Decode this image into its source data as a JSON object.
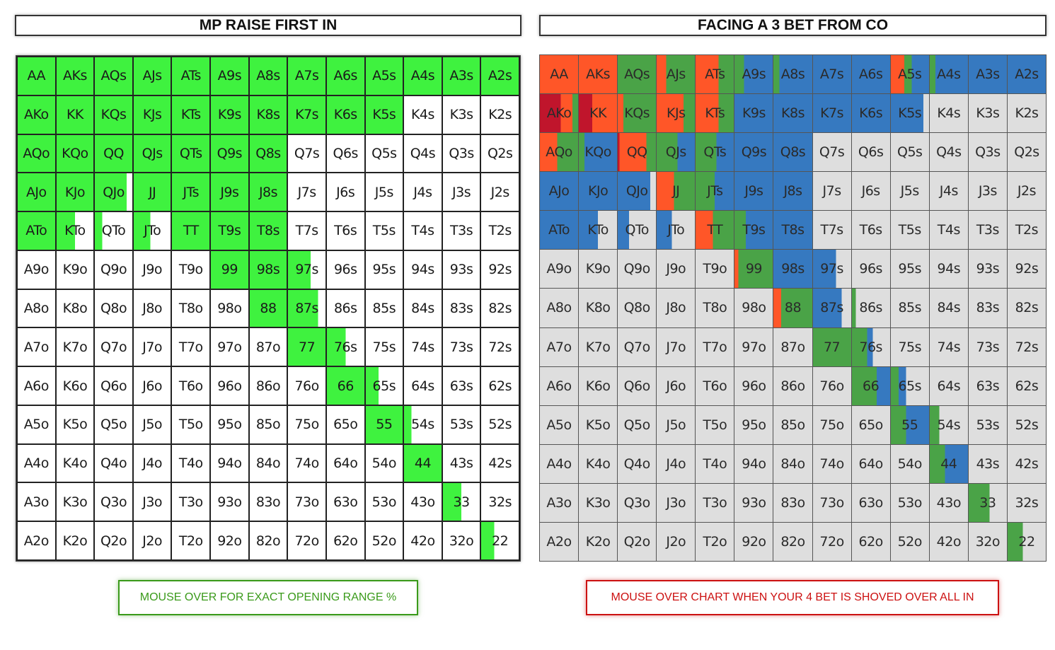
{
  "left_panel": {
    "title": "MP RAISE FIRST IN",
    "note": "MOUSE OVER FOR EXACT OPENING RANGE %"
  },
  "right_panel": {
    "title": "FACING A 3 BET FROM CO",
    "note": "MOUSE OVER CHART WHEN YOUR 4 BET IS SHOVED OVER ALL IN"
  },
  "colors": {
    "raise": "#3ff23f",
    "fold_left": "#ffffff",
    "four_bet_allin": "#c0152c",
    "four_bet_fold": "#ff5628",
    "call": "#4aa347",
    "fold_right": "#dedede",
    "blue": "#3679c0"
  },
  "hands": [
    [
      "AA",
      "AKs",
      "AQs",
      "AJs",
      "ATs",
      "A9s",
      "A8s",
      "A7s",
      "A6s",
      "A5s",
      "A4s",
      "A3s",
      "A2s"
    ],
    [
      "AKo",
      "KK",
      "KQs",
      "KJs",
      "KTs",
      "K9s",
      "K8s",
      "K7s",
      "K6s",
      "K5s",
      "K4s",
      "K3s",
      "K2s"
    ],
    [
      "AQo",
      "KQo",
      "QQ",
      "QJs",
      "QTs",
      "Q9s",
      "Q8s",
      "Q7s",
      "Q6s",
      "Q5s",
      "Q4s",
      "Q3s",
      "Q2s"
    ],
    [
      "AJo",
      "KJo",
      "QJo",
      "JJ",
      "JTs",
      "J9s",
      "J8s",
      "J7s",
      "J6s",
      "J5s",
      "J4s",
      "J3s",
      "J2s"
    ],
    [
      "ATo",
      "KTo",
      "QTo",
      "JTo",
      "TT",
      "T9s",
      "T8s",
      "T7s",
      "T6s",
      "T5s",
      "T4s",
      "T3s",
      "T2s"
    ],
    [
      "A9o",
      "K9o",
      "Q9o",
      "J9o",
      "T9o",
      "99",
      "98s",
      "97s",
      "96s",
      "95s",
      "94s",
      "93s",
      "92s"
    ],
    [
      "A8o",
      "K8o",
      "Q8o",
      "J8o",
      "T8o",
      "98o",
      "88",
      "87s",
      "86s",
      "85s",
      "84s",
      "83s",
      "82s"
    ],
    [
      "A7o",
      "K7o",
      "Q7o",
      "J7o",
      "T7o",
      "97o",
      "87o",
      "77",
      "76s",
      "75s",
      "74s",
      "73s",
      "72s"
    ],
    [
      "A6o",
      "K6o",
      "Q6o",
      "J6o",
      "T6o",
      "96o",
      "86o",
      "76o",
      "66",
      "65s",
      "64s",
      "63s",
      "62s"
    ],
    [
      "A5o",
      "K5o",
      "Q5o",
      "J5o",
      "T5o",
      "95o",
      "85o",
      "75o",
      "65o",
      "55",
      "54s",
      "53s",
      "52s"
    ],
    [
      "A4o",
      "K4o",
      "Q4o",
      "J4o",
      "T4o",
      "94o",
      "84o",
      "74o",
      "64o",
      "54o",
      "44",
      "43s",
      "42s"
    ],
    [
      "A3o",
      "K3o",
      "Q3o",
      "J3o",
      "T3o",
      "93o",
      "83o",
      "73o",
      "63o",
      "53o",
      "43o",
      "33",
      "32s"
    ],
    [
      "A2o",
      "K2o",
      "Q2o",
      "J2o",
      "T2o",
      "92o",
      "82o",
      "72o",
      "62o",
      "52o",
      "42o",
      "32o",
      "22"
    ]
  ],
  "open_range_pct": [
    [
      100,
      100,
      100,
      100,
      100,
      100,
      100,
      100,
      100,
      100,
      100,
      100,
      100
    ],
    [
      100,
      100,
      100,
      100,
      100,
      100,
      100,
      100,
      100,
      100,
      0,
      0,
      0
    ],
    [
      100,
      100,
      100,
      100,
      100,
      100,
      100,
      0,
      0,
      0,
      0,
      0,
      0
    ],
    [
      100,
      100,
      85,
      100,
      100,
      100,
      100,
      0,
      0,
      0,
      0,
      0,
      0
    ],
    [
      100,
      50,
      20,
      45,
      100,
      100,
      100,
      0,
      0,
      0,
      0,
      0,
      0
    ],
    [
      0,
      0,
      0,
      0,
      0,
      100,
      100,
      60,
      0,
      0,
      0,
      0,
      0
    ],
    [
      0,
      0,
      0,
      0,
      0,
      0,
      100,
      80,
      0,
      0,
      0,
      0,
      0
    ],
    [
      0,
      0,
      0,
      0,
      0,
      0,
      0,
      100,
      50,
      0,
      0,
      0,
      0
    ],
    [
      0,
      0,
      0,
      0,
      0,
      0,
      0,
      0,
      100,
      35,
      0,
      0,
      0
    ],
    [
      0,
      0,
      0,
      0,
      0,
      0,
      0,
      0,
      0,
      100,
      20,
      0,
      0
    ],
    [
      0,
      0,
      0,
      0,
      0,
      0,
      0,
      0,
      0,
      0,
      100,
      0,
      0
    ],
    [
      0,
      0,
      0,
      0,
      0,
      0,
      0,
      0,
      0,
      0,
      0,
      50,
      0
    ],
    [
      0,
      0,
      0,
      0,
      0,
      0,
      0,
      0,
      0,
      0,
      0,
      0,
      35
    ]
  ],
  "response_mix": [
    [
      [
        [
          "four_bet_fold",
          100
        ]
      ],
      [
        [
          "four_bet_fold",
          100
        ]
      ],
      [
        [
          "call",
          100
        ]
      ],
      [
        [
          "four_bet_fold",
          25
        ],
        [
          "call",
          75
        ]
      ],
      [
        [
          "four_bet_fold",
          60
        ],
        [
          "call",
          40
        ]
      ],
      [
        [
          "call",
          25
        ],
        [
          "blue",
          75
        ]
      ],
      [
        [
          "call",
          15
        ],
        [
          "blue",
          85
        ]
      ],
      [
        [
          "blue",
          100
        ]
      ],
      [
        [
          "blue",
          100
        ]
      ],
      [
        [
          "four_bet_fold",
          35
        ],
        [
          "call",
          20
        ],
        [
          "blue",
          45
        ]
      ],
      [
        [
          "call",
          15
        ],
        [
          "blue",
          85
        ]
      ],
      [
        [
          "blue",
          100
        ]
      ],
      [
        [
          "blue",
          100
        ]
      ]
    ],
    [
      [
        [
          "four_bet_allin",
          55
        ],
        [
          "four_bet_fold",
          30
        ],
        [
          "call",
          15
        ]
      ],
      [
        [
          "four_bet_allin",
          35
        ],
        [
          "four_bet_fold",
          65
        ]
      ],
      [
        [
          "four_bet_fold",
          15
        ],
        [
          "call",
          85
        ]
      ],
      [
        [
          "four_bet_fold",
          70
        ],
        [
          "call",
          30
        ]
      ],
      [
        [
          "four_bet_fold",
          60
        ],
        [
          "call",
          40
        ]
      ],
      [
        [
          "blue",
          100
        ]
      ],
      [
        [
          "blue",
          100
        ]
      ],
      [
        [
          "blue",
          100
        ]
      ],
      [
        [
          "blue",
          100
        ]
      ],
      [
        [
          "blue",
          85
        ],
        [
          "fold_right",
          15
        ]
      ],
      [
        [
          "fold_right",
          100
        ]
      ],
      [
        [
          "fold_right",
          100
        ]
      ],
      [
        [
          "fold_right",
          100
        ]
      ]
    ],
    [
      [
        [
          "four_bet_fold",
          45
        ],
        [
          "call",
          55
        ]
      ],
      [
        [
          "call",
          15
        ],
        [
          "blue",
          85
        ]
      ],
      [
        [
          "four_bet_allin",
          5
        ],
        [
          "four_bet_fold",
          70
        ],
        [
          "call",
          25
        ]
      ],
      [
        [
          "call",
          55
        ],
        [
          "blue",
          45
        ]
      ],
      [
        [
          "call",
          55
        ],
        [
          "blue",
          45
        ]
      ],
      [
        [
          "blue",
          100
        ]
      ],
      [
        [
          "blue",
          100
        ]
      ],
      [
        [
          "fold_right",
          100
        ]
      ],
      [
        [
          "fold_right",
          100
        ]
      ],
      [
        [
          "fold_right",
          100
        ]
      ],
      [
        [
          "fold_right",
          100
        ]
      ],
      [
        [
          "fold_right",
          100
        ]
      ],
      [
        [
          "fold_right",
          100
        ]
      ]
    ],
    [
      [
        [
          "blue",
          100
        ]
      ],
      [
        [
          "blue",
          100
        ]
      ],
      [
        [
          "blue",
          85
        ],
        [
          "fold_right",
          15
        ]
      ],
      [
        [
          "four_bet_fold",
          45
        ],
        [
          "call",
          55
        ]
      ],
      [
        [
          "call",
          50
        ],
        [
          "blue",
          50
        ]
      ],
      [
        [
          "blue",
          100
        ]
      ],
      [
        [
          "blue",
          100
        ]
      ],
      [
        [
          "fold_right",
          100
        ]
      ],
      [
        [
          "fold_right",
          100
        ]
      ],
      [
        [
          "fold_right",
          100
        ]
      ],
      [
        [
          "fold_right",
          100
        ]
      ],
      [
        [
          "fold_right",
          100
        ]
      ],
      [
        [
          "fold_right",
          100
        ]
      ]
    ],
    [
      [
        [
          "blue",
          100
        ]
      ],
      [
        [
          "blue",
          50
        ],
        [
          "fold_right",
          50
        ]
      ],
      [
        [
          "blue",
          30
        ],
        [
          "fold_right",
          70
        ]
      ],
      [
        [
          "blue",
          40
        ],
        [
          "fold_right",
          60
        ]
      ],
      [
        [
          "four_bet_fold",
          45
        ],
        [
          "call",
          55
        ]
      ],
      [
        [
          "call",
          30
        ],
        [
          "blue",
          70
        ]
      ],
      [
        [
          "blue",
          100
        ]
      ],
      [
        [
          "fold_right",
          100
        ]
      ],
      [
        [
          "fold_right",
          100
        ]
      ],
      [
        [
          "fold_right",
          100
        ]
      ],
      [
        [
          "fold_right",
          100
        ]
      ],
      [
        [
          "fold_right",
          100
        ]
      ],
      [
        [
          "fold_right",
          100
        ]
      ]
    ],
    [
      [
        [
          "fold_right",
          100
        ]
      ],
      [
        [
          "fold_right",
          100
        ]
      ],
      [
        [
          "fold_right",
          100
        ]
      ],
      [
        [
          "fold_right",
          100
        ]
      ],
      [
        [
          "fold_right",
          100
        ]
      ],
      [
        [
          "four_bet_fold",
          10
        ],
        [
          "call",
          90
        ]
      ],
      [
        [
          "blue",
          100
        ]
      ],
      [
        [
          "blue",
          60
        ],
        [
          "fold_right",
          40
        ]
      ],
      [
        [
          "fold_right",
          100
        ]
      ],
      [
        [
          "fold_right",
          100
        ]
      ],
      [
        [
          "fold_right",
          100
        ]
      ],
      [
        [
          "fold_right",
          100
        ]
      ],
      [
        [
          "fold_right",
          100
        ]
      ]
    ],
    [
      [
        [
          "fold_right",
          100
        ]
      ],
      [
        [
          "fold_right",
          100
        ]
      ],
      [
        [
          "fold_right",
          100
        ]
      ],
      [
        [
          "fold_right",
          100
        ]
      ],
      [
        [
          "fold_right",
          100
        ]
      ],
      [
        [
          "fold_right",
          100
        ]
      ],
      [
        [
          "four_bet_fold",
          20
        ],
        [
          "call",
          80
        ]
      ],
      [
        [
          "blue",
          75
        ],
        [
          "fold_right",
          25
        ]
      ],
      [
        [
          "call",
          10
        ],
        [
          "fold_right",
          90
        ]
      ],
      [
        [
          "fold_right",
          100
        ]
      ],
      [
        [
          "fold_right",
          100
        ]
      ],
      [
        [
          "fold_right",
          100
        ]
      ],
      [
        [
          "fold_right",
          100
        ]
      ]
    ],
    [
      [
        [
          "fold_right",
          100
        ]
      ],
      [
        [
          "fold_right",
          100
        ]
      ],
      [
        [
          "fold_right",
          100
        ]
      ],
      [
        [
          "fold_right",
          100
        ]
      ],
      [
        [
          "fold_right",
          100
        ]
      ],
      [
        [
          "fold_right",
          100
        ]
      ],
      [
        [
          "fold_right",
          100
        ]
      ],
      [
        [
          "call",
          100
        ]
      ],
      [
        [
          "call",
          40
        ],
        [
          "blue",
          15
        ],
        [
          "fold_right",
          45
        ]
      ],
      [
        [
          "fold_right",
          100
        ]
      ],
      [
        [
          "fold_right",
          100
        ]
      ],
      [
        [
          "fold_right",
          100
        ]
      ],
      [
        [
          "fold_right",
          100
        ]
      ]
    ],
    [
      [
        [
          "fold_right",
          100
        ]
      ],
      [
        [
          "fold_right",
          100
        ]
      ],
      [
        [
          "fold_right",
          100
        ]
      ],
      [
        [
          "fold_right",
          100
        ]
      ],
      [
        [
          "fold_right",
          100
        ]
      ],
      [
        [
          "fold_right",
          100
        ]
      ],
      [
        [
          "fold_right",
          100
        ]
      ],
      [
        [
          "fold_right",
          100
        ]
      ],
      [
        [
          "call",
          65
        ],
        [
          "blue",
          35
        ]
      ],
      [
        [
          "call",
          20
        ],
        [
          "blue",
          20
        ],
        [
          "fold_right",
          60
        ]
      ],
      [
        [
          "fold_right",
          100
        ]
      ],
      [
        [
          "fold_right",
          100
        ]
      ],
      [
        [
          "fold_right",
          100
        ]
      ]
    ],
    [
      [
        [
          "fold_right",
          100
        ]
      ],
      [
        [
          "fold_right",
          100
        ]
      ],
      [
        [
          "fold_right",
          100
        ]
      ],
      [
        [
          "fold_right",
          100
        ]
      ],
      [
        [
          "fold_right",
          100
        ]
      ],
      [
        [
          "fold_right",
          100
        ]
      ],
      [
        [
          "fold_right",
          100
        ]
      ],
      [
        [
          "fold_right",
          100
        ]
      ],
      [
        [
          "fold_right",
          100
        ]
      ],
      [
        [
          "call",
          40
        ],
        [
          "blue",
          60
        ]
      ],
      [
        [
          "call",
          25
        ],
        [
          "fold_right",
          75
        ]
      ],
      [
        [
          "fold_right",
          100
        ]
      ],
      [
        [
          "fold_right",
          100
        ]
      ]
    ],
    [
      [
        [
          "fold_right",
          100
        ]
      ],
      [
        [
          "fold_right",
          100
        ]
      ],
      [
        [
          "fold_right",
          100
        ]
      ],
      [
        [
          "fold_right",
          100
        ]
      ],
      [
        [
          "fold_right",
          100
        ]
      ],
      [
        [
          "fold_right",
          100
        ]
      ],
      [
        [
          "fold_right",
          100
        ]
      ],
      [
        [
          "fold_right",
          100
        ]
      ],
      [
        [
          "fold_right",
          100
        ]
      ],
      [
        [
          "fold_right",
          100
        ]
      ],
      [
        [
          "call",
          40
        ],
        [
          "blue",
          60
        ]
      ],
      [
        [
          "fold_right",
          100
        ]
      ],
      [
        [
          "fold_right",
          100
        ]
      ]
    ],
    [
      [
        [
          "fold_right",
          100
        ]
      ],
      [
        [
          "fold_right",
          100
        ]
      ],
      [
        [
          "fold_right",
          100
        ]
      ],
      [
        [
          "fold_right",
          100
        ]
      ],
      [
        [
          "fold_right",
          100
        ]
      ],
      [
        [
          "fold_right",
          100
        ]
      ],
      [
        [
          "fold_right",
          100
        ]
      ],
      [
        [
          "fold_right",
          100
        ]
      ],
      [
        [
          "fold_right",
          100
        ]
      ],
      [
        [
          "fold_right",
          100
        ]
      ],
      [
        [
          "fold_right",
          100
        ]
      ],
      [
        [
          "call",
          55
        ],
        [
          "fold_right",
          45
        ]
      ],
      [
        [
          "fold_right",
          100
        ]
      ]
    ],
    [
      [
        [
          "fold_right",
          100
        ]
      ],
      [
        [
          "fold_right",
          100
        ]
      ],
      [
        [
          "fold_right",
          100
        ]
      ],
      [
        [
          "fold_right",
          100
        ]
      ],
      [
        [
          "fold_right",
          100
        ]
      ],
      [
        [
          "fold_right",
          100
        ]
      ],
      [
        [
          "fold_right",
          100
        ]
      ],
      [
        [
          "fold_right",
          100
        ]
      ],
      [
        [
          "fold_right",
          100
        ]
      ],
      [
        [
          "fold_right",
          100
        ]
      ],
      [
        [
          "fold_right",
          100
        ]
      ],
      [
        [
          "fold_right",
          100
        ]
      ],
      [
        [
          "call",
          40
        ],
        [
          "fold_right",
          60
        ]
      ]
    ]
  ]
}
